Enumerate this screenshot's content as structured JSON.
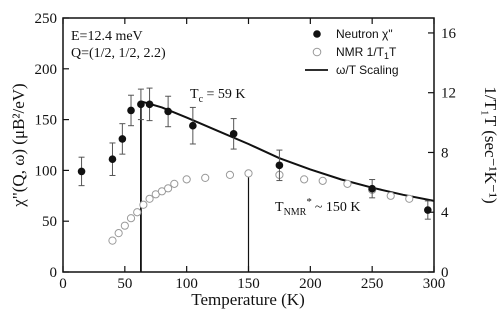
{
  "chart_data": {
    "type": "scatter",
    "xlabel": "Temperature (K)",
    "ylabel_left": "χ\"(Q, ω) (μB²/eV)",
    "ylabel_right": "1/T₁T (sec⁻¹K⁻¹)",
    "xlim": [
      0,
      300
    ],
    "ylim_left": [
      0,
      250
    ],
    "ylim_right": [
      0,
      17
    ],
    "x_ticks": [
      0,
      50,
      100,
      150,
      200,
      250,
      300
    ],
    "y_left_ticks": [
      0,
      50,
      100,
      150,
      200,
      250
    ],
    "y_right_ticks": [
      0,
      4,
      8,
      12,
      16
    ],
    "annotations": {
      "energy": "E=12.4 meV",
      "q_vector": "Q=(1/2, 1/2, 2.2)",
      "tc_label": "T",
      "tc_sub": "c",
      "tc_value": " = 59 K",
      "tc_x": 63,
      "tnmr_label": "T",
      "tnmr_sub": "NMR",
      "tnmr_sup": "*",
      "tnmr_value": "~ 150 K",
      "tnmr_x": 150
    },
    "legend": {
      "placement": "top-right",
      "neutron_label": "Neutron χ\"",
      "nmr_label": "NMR 1/T",
      "nmr_sub1": "1",
      "nmr_label2": "T",
      "scaling_label": "ω/T Scaling"
    },
    "series": [
      {
        "name": "Neutron χ\"",
        "axis": "left",
        "marker": "filled-circle",
        "points": [
          {
            "x": 15,
            "y": 99,
            "err": 14
          },
          {
            "x": 40,
            "y": 111,
            "err": 16
          },
          {
            "x": 48,
            "y": 131,
            "err": 15
          },
          {
            "x": 55,
            "y": 159,
            "err": 15
          },
          {
            "x": 63,
            "y": 165,
            "err": 15
          },
          {
            "x": 70,
            "y": 165,
            "err": 16
          },
          {
            "x": 85,
            "y": 158,
            "err": 15
          },
          {
            "x": 105,
            "y": 144,
            "err": 18
          },
          {
            "x": 138,
            "y": 136,
            "err": 15
          },
          {
            "x": 175,
            "y": 105,
            "err": 15
          },
          {
            "x": 250,
            "y": 82,
            "err": 9
          },
          {
            "x": 295,
            "y": 61,
            "err": 9
          }
        ]
      },
      {
        "name": "NMR 1/T1T",
        "axis": "right",
        "marker": "open-circle",
        "points": [
          {
            "x": 40,
            "y": 2.1
          },
          {
            "x": 45,
            "y": 2.6
          },
          {
            "x": 50,
            "y": 3.1
          },
          {
            "x": 55,
            "y": 3.6
          },
          {
            "x": 60,
            "y": 4.0
          },
          {
            "x": 65,
            "y": 4.5
          },
          {
            "x": 70,
            "y": 4.9
          },
          {
            "x": 75,
            "y": 5.2
          },
          {
            "x": 80,
            "y": 5.4
          },
          {
            "x": 85,
            "y": 5.6
          },
          {
            "x": 90,
            "y": 5.9
          },
          {
            "x": 100,
            "y": 6.2
          },
          {
            "x": 115,
            "y": 6.3
          },
          {
            "x": 135,
            "y": 6.5
          },
          {
            "x": 150,
            "y": 6.6
          },
          {
            "x": 175,
            "y": 6.5
          },
          {
            "x": 195,
            "y": 6.2
          },
          {
            "x": 210,
            "y": 6.1
          },
          {
            "x": 230,
            "y": 5.9
          },
          {
            "x": 250,
            "y": 5.5
          },
          {
            "x": 265,
            "y": 5.1
          },
          {
            "x": 280,
            "y": 4.9
          }
        ]
      },
      {
        "name": "ω/T Scaling",
        "axis": "left",
        "marker": "line",
        "points": [
          {
            "x": 63,
            "y": 168
          },
          {
            "x": 80,
            "y": 162
          },
          {
            "x": 100,
            "y": 152
          },
          {
            "x": 125,
            "y": 139
          },
          {
            "x": 150,
            "y": 126
          },
          {
            "x": 175,
            "y": 112
          },
          {
            "x": 200,
            "y": 101
          },
          {
            "x": 225,
            "y": 91
          },
          {
            "x": 250,
            "y": 83
          },
          {
            "x": 275,
            "y": 76
          },
          {
            "x": 300,
            "y": 70
          }
        ]
      }
    ]
  }
}
